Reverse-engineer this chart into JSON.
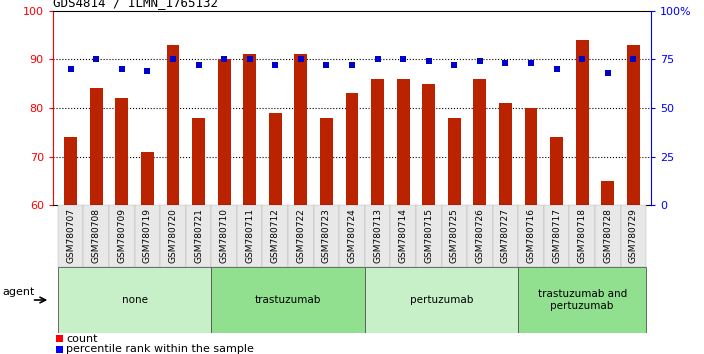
{
  "title": "GDS4814 / ILMN_1765132",
  "samples": [
    "GSM780707",
    "GSM780708",
    "GSM780709",
    "GSM780719",
    "GSM780720",
    "GSM780721",
    "GSM780710",
    "GSM780711",
    "GSM780712",
    "GSM780722",
    "GSM780723",
    "GSM780724",
    "GSM780713",
    "GSM780714",
    "GSM780715",
    "GSM780725",
    "GSM780726",
    "GSM780727",
    "GSM780716",
    "GSM780717",
    "GSM780718",
    "GSM780728",
    "GSM780729"
  ],
  "counts": [
    74,
    84,
    82,
    71,
    93,
    78,
    90,
    91,
    79,
    91,
    78,
    83,
    86,
    86,
    85,
    78,
    86,
    81,
    80,
    74,
    94,
    65,
    93
  ],
  "percentiles": [
    70,
    75,
    70,
    69,
    75,
    72,
    75,
    75,
    72,
    75,
    72,
    72,
    75,
    75,
    74,
    72,
    74,
    73,
    73,
    70,
    75,
    68,
    75
  ],
  "groups": [
    {
      "label": "none",
      "start": 0,
      "end": 5,
      "color": "#c8f0c8"
    },
    {
      "label": "trastuzumab",
      "start": 6,
      "end": 11,
      "color": "#90e090"
    },
    {
      "label": "pertuzumab",
      "start": 12,
      "end": 17,
      "color": "#c8f0c8"
    },
    {
      "label": "trastuzumab and\npertuzumab",
      "start": 18,
      "end": 22,
      "color": "#90e090"
    }
  ],
  "ylim_left": [
    60,
    100
  ],
  "yticks_left": [
    60,
    70,
    80,
    90,
    100
  ],
  "ylim_right": [
    0,
    100
  ],
  "yticks_right": [
    0,
    25,
    50,
    75,
    100
  ],
  "bar_color": "#bb2200",
  "dot_color": "#0000cc",
  "bar_width": 0.5,
  "bg_color": "#e8e8e8",
  "group_colors": [
    "#c8f0c8",
    "#90e090",
    "#c8f0c8",
    "#90e090"
  ]
}
